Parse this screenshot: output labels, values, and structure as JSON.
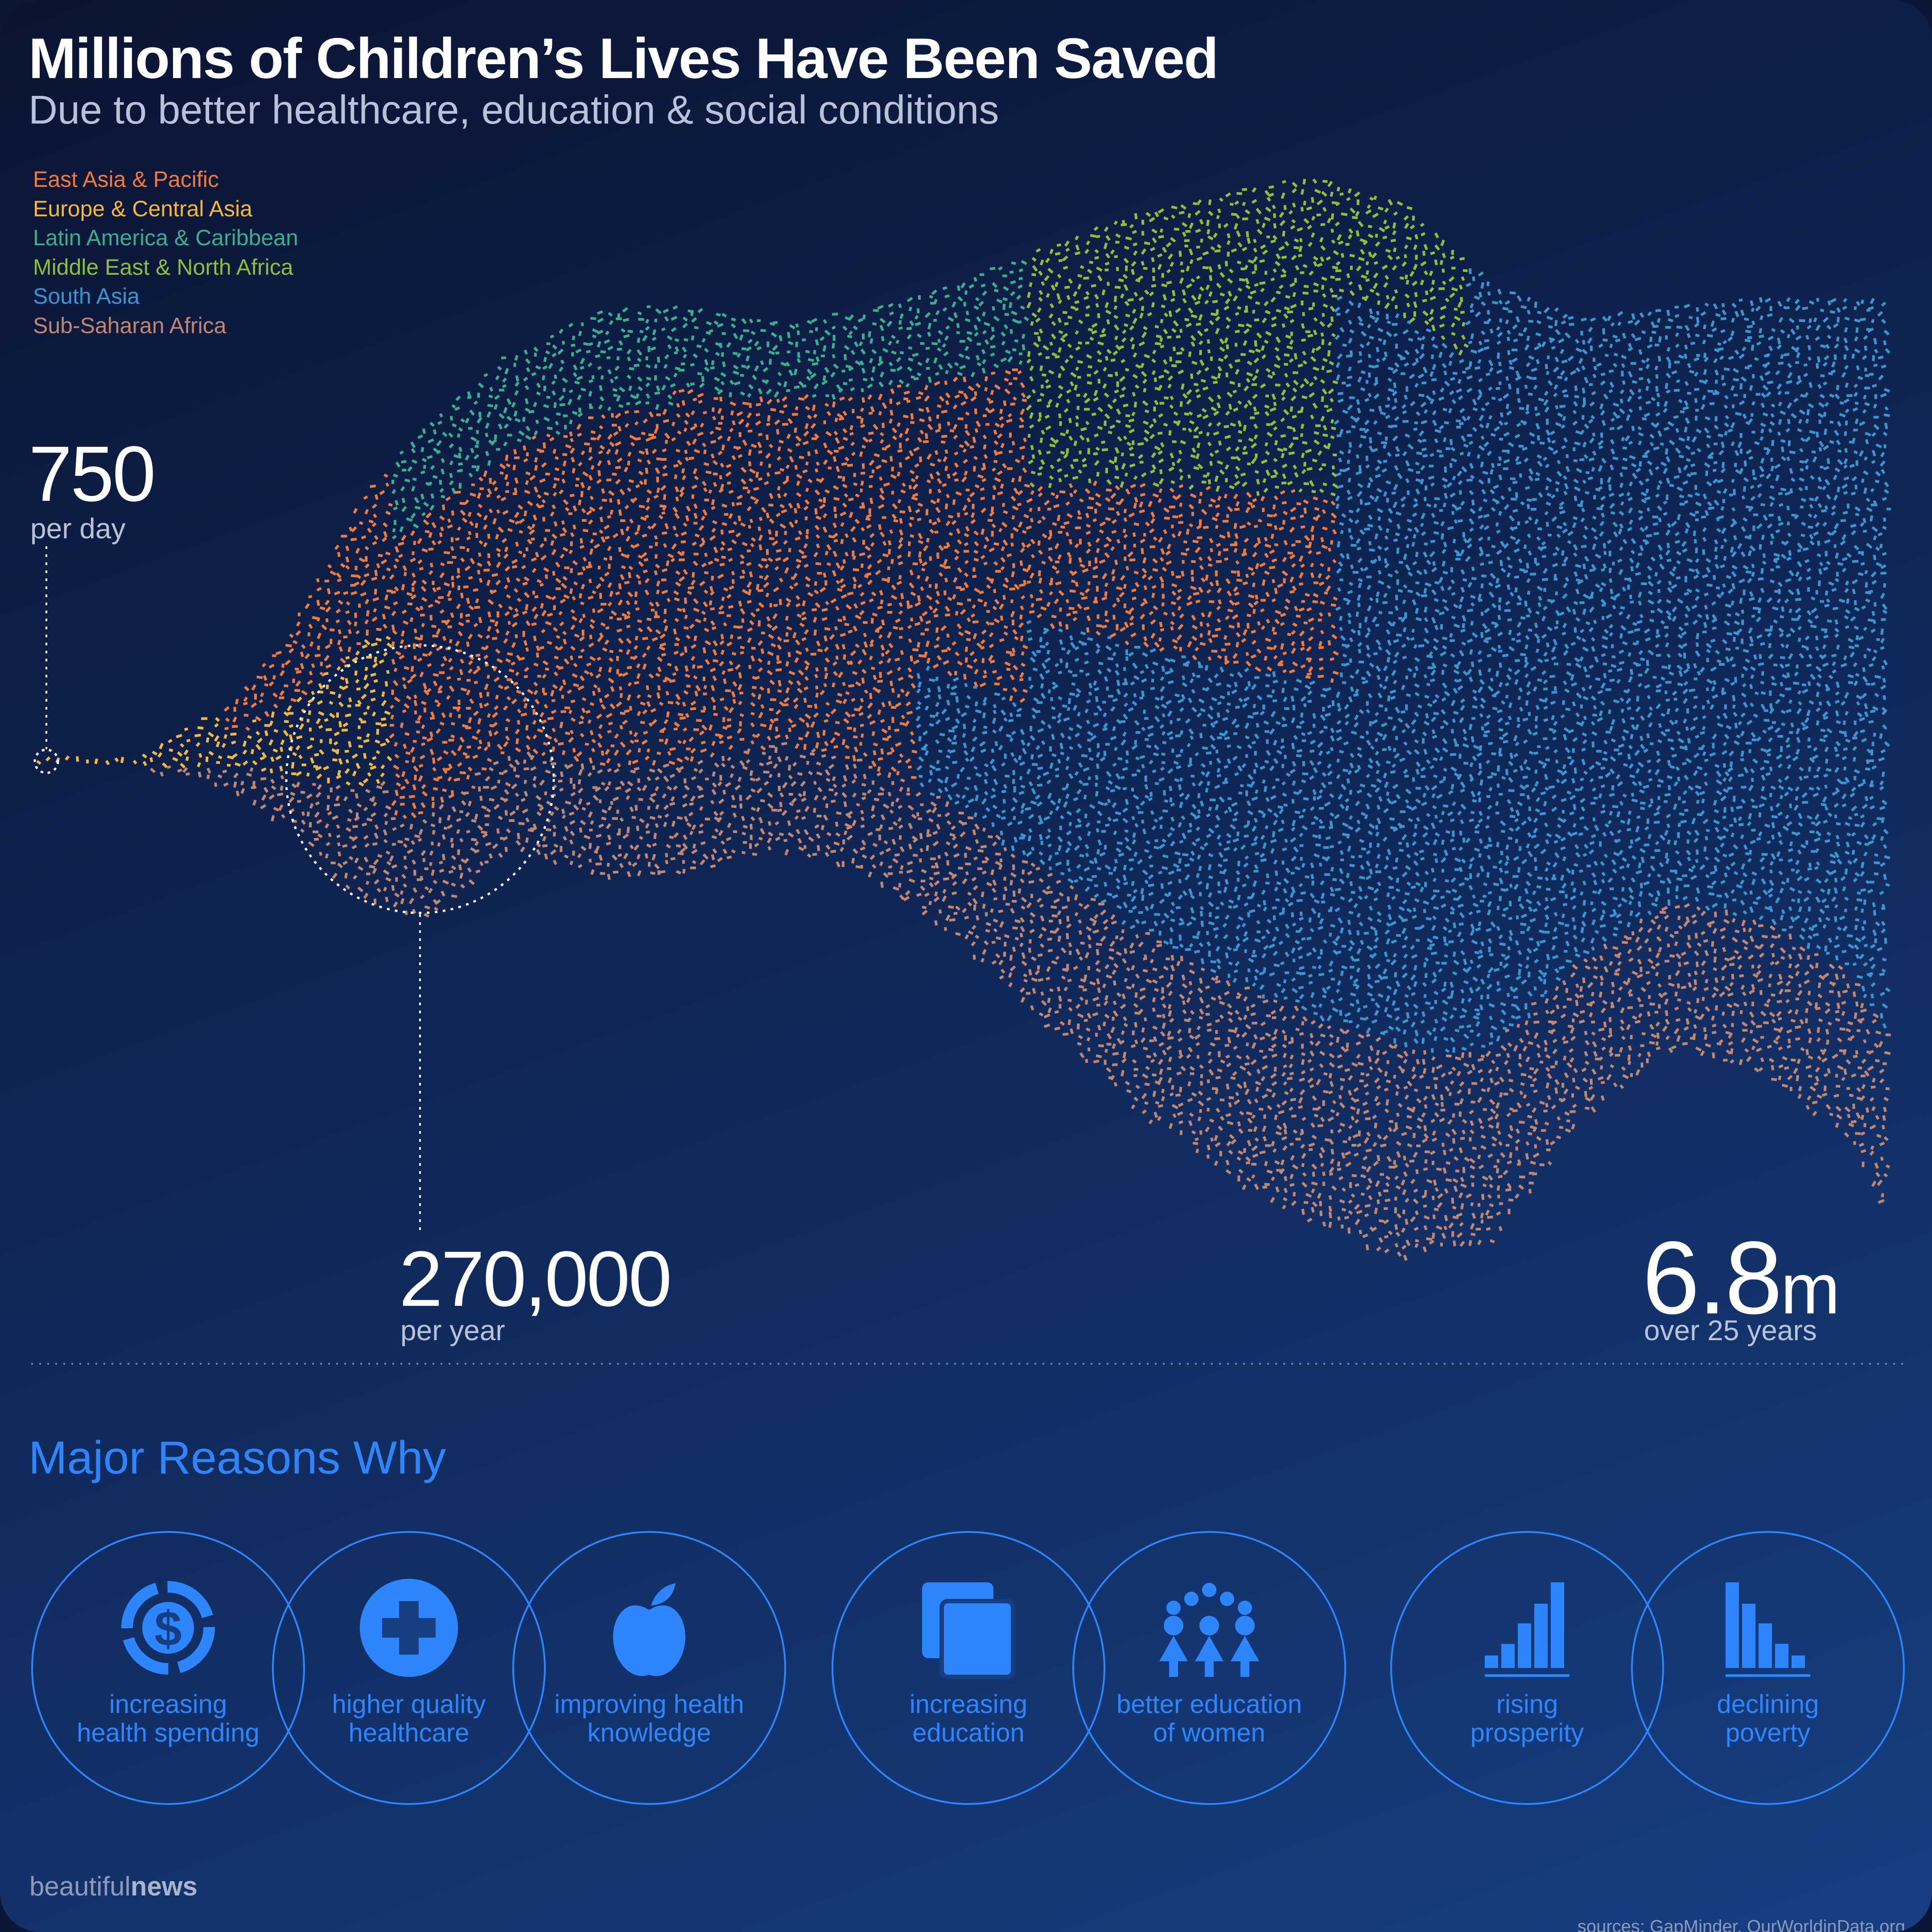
{
  "header": {
    "title": "Millions of Children’s Lives Have Been Saved",
    "subtitle": "Due to better healthcare, education & social conditions"
  },
  "chart_data": {
    "type": "area",
    "x": [
      "start",
      "end"
    ],
    "series": [
      {
        "name": "East Asia & Pacific",
        "color": "#f07b3c"
      },
      {
        "name": "Europe & Central Asia",
        "color": "#f5b83a"
      },
      {
        "name": "Latin America & Caribbean",
        "color": "#38b08c"
      },
      {
        "name": "Middle East & North Africa",
        "color": "#8fbf36"
      },
      {
        "name": "South Asia",
        "color": "#3b95d0"
      },
      {
        "name": "Sub-Saharan Africa",
        "color": "#c3866f"
      }
    ],
    "annotations": [
      {
        "value": "750",
        "label": "per day"
      },
      {
        "value": "270,000",
        "label": "per year"
      },
      {
        "value": "6.8",
        "unit": "m",
        "label": "over 25 years"
      }
    ]
  },
  "reasons": {
    "title": "Major Reasons Why",
    "items": [
      {
        "line1": "increasing",
        "line2": "health spending",
        "icon": "dollar-coin-icon"
      },
      {
        "line1": "higher quality",
        "line2": "healthcare",
        "icon": "medical-cross-icon"
      },
      {
        "line1": "improving health",
        "line2": "knowledge",
        "icon": "apple-icon"
      },
      {
        "line1": "increasing",
        "line2": "education",
        "icon": "books-icon"
      },
      {
        "line1": "better education",
        "line2": "of women",
        "icon": "women-group-icon"
      },
      {
        "line1": "rising",
        "line2": "prosperity",
        "icon": "rising-bars-icon"
      },
      {
        "line1": "declining",
        "line2": "poverty",
        "icon": "declining-bars-icon"
      }
    ]
  },
  "footer": {
    "brand_light": "beautiful",
    "brand_bold": "news",
    "sources": "sources: GapMinder, OurWorldinData.org"
  },
  "colors": {
    "accent": "#2e86ff",
    "background_top": "#0b1434",
    "background_bottom": "#163f82"
  }
}
